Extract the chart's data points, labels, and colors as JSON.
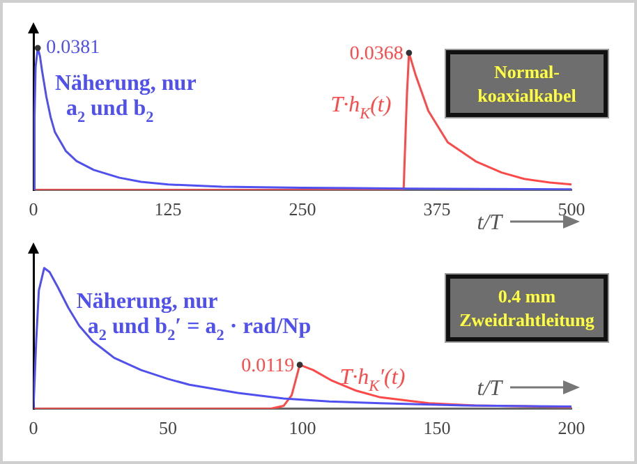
{
  "chart_data": [
    {
      "type": "line",
      "xlabel": "t/T",
      "annotations": [
        "Normal-\nkoaxialkabel"
      ],
      "xlim": [
        0,
        500
      ],
      "xticks": [
        0,
        125,
        250,
        375,
        500
      ],
      "ylim": [
        0,
        0.042
      ],
      "tick_labels": "x",
      "legend": false,
      "grid": false,
      "series": [
        {
          "name": "Näherung, nur\na$_{2}$ und b$_{2}$",
          "color": "#5050f0",
          "x": [
            0,
            1,
            2,
            4,
            6,
            8,
            12,
            16,
            20,
            30,
            40,
            56,
            80,
            100,
            125,
            175,
            250,
            350,
            500
          ],
          "values": [
            0,
            0.02,
            0.033,
            0.0381,
            0.036,
            0.032,
            0.025,
            0.0195,
            0.0155,
            0.0105,
            0.0078,
            0.0054,
            0.0033,
            0.0022,
            0.0015,
            0.0009,
            0.0006,
            0.0004,
            0.0002
          ],
          "value_labels": [
            null,
            null,
            null,
            "0.0381",
            null,
            null,
            null,
            null,
            null,
            null,
            null,
            null,
            null,
            null,
            null,
            null,
            null,
            null,
            null
          ]
        },
        {
          "name": "T·h$_{K}$(t)",
          "color": "#ff4848",
          "x": [
            0,
            344,
            347,
            349,
            355,
            367,
            385,
            411,
            435,
            456,
            480,
            500
          ],
          "values": [
            0,
            0,
            0.025,
            0.0368,
            0.031,
            0.0212,
            0.0128,
            0.0077,
            0.0047,
            0.003,
            0.002,
            0.0015
          ],
          "value_labels": [
            null,
            null,
            null,
            "0.0368",
            null,
            null,
            null,
            null,
            null,
            null,
            null,
            null
          ]
        }
      ]
    },
    {
      "type": "line",
      "xlabel": "t/T",
      "annotations": [
        "0.4 mm\nZweidrahtleitung"
      ],
      "xlim": [
        0,
        200
      ],
      "xticks": [
        0,
        50,
        100,
        150,
        200
      ],
      "ylim": [
        0,
        0.042
      ],
      "tick_labels": "x",
      "legend": false,
      "grid": false,
      "series": [
        {
          "name": "Näherung, nur\na$_{2}$ und b$_{2}$′ = a$_{2}$ · rad/Np",
          "color": "#5050f0",
          "x": [
            0,
            1,
            2,
            4,
            6,
            9,
            13,
            17,
            22,
            30,
            40,
            50,
            58,
            76,
            93,
            110,
            129,
            160,
            200
          ],
          "values": [
            0,
            0.018,
            0.032,
            0.0381,
            0.037,
            0.033,
            0.0273,
            0.0225,
            0.0183,
            0.0138,
            0.0105,
            0.0081,
            0.0065,
            0.0043,
            0.0028,
            0.002,
            0.0015,
            0.0009,
            0.0006
          ]
        },
        {
          "name": "T·h$_{K}$′(t)",
          "color": "#ff4848",
          "x": [
            0,
            88,
            93,
            96,
            99,
            104,
            111,
            120,
            129,
            147,
            164,
            200
          ],
          "values": [
            0,
            0,
            0.0008,
            0.0037,
            0.0119,
            0.0105,
            0.0076,
            0.0049,
            0.0031,
            0.0015,
            0.0009,
            0.0005
          ],
          "value_labels": [
            null,
            null,
            null,
            null,
            "0.0119",
            null,
            null,
            null,
            null,
            null,
            null,
            null
          ]
        }
      ]
    }
  ]
}
